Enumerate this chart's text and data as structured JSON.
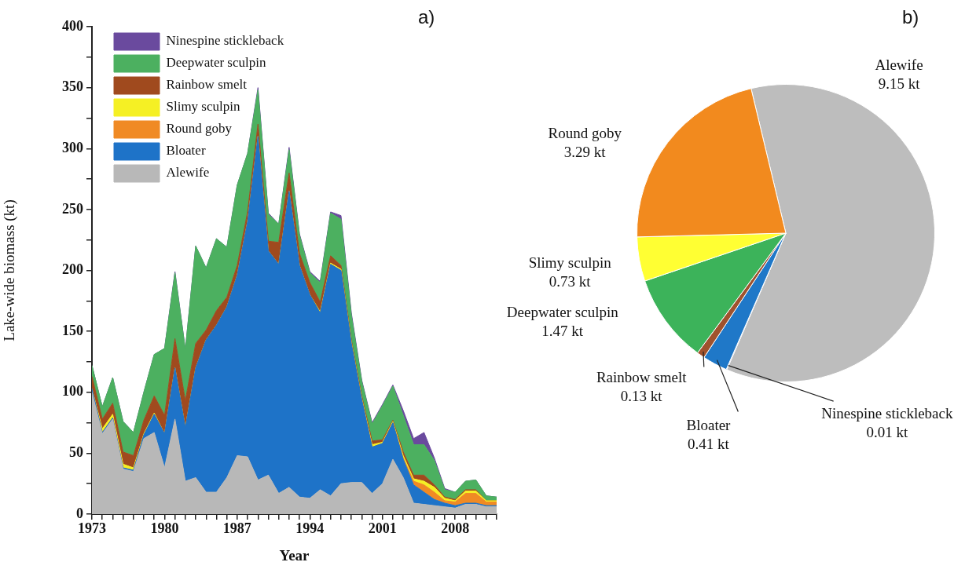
{
  "chart_data": [
    {
      "type": "area",
      "title": "a)",
      "xlabel": "Year",
      "ylabel": "Lake-wide biomass (kt)",
      "stacked": true,
      "legend": "top left",
      "x": [
        1973,
        1974,
        1975,
        1976,
        1977,
        1978,
        1979,
        1980,
        1981,
        1982,
        1983,
        1984,
        1985,
        1986,
        1987,
        1988,
        1989,
        1990,
        1991,
        1992,
        1993,
        1994,
        1995,
        1996,
        1997,
        1998,
        1999,
        2000,
        2001,
        2002,
        2003,
        2004,
        2005,
        2006,
        2007,
        2008,
        2009,
        2010,
        2011,
        2012
      ],
      "series": [
        {
          "name": "Alewife",
          "color": "#b8b8b8",
          "values": [
            100,
            66,
            78,
            37,
            35,
            62,
            67,
            38,
            78,
            27,
            30,
            18,
            18,
            30,
            48,
            47,
            28,
            32,
            17,
            22,
            14,
            13,
            20,
            15,
            25,
            26,
            26,
            17,
            25,
            45,
            30,
            9,
            8,
            7,
            6,
            5,
            8,
            8,
            6,
            6
          ]
        },
        {
          "name": "Bloater",
          "color": "#1e73c8",
          "values": [
            3,
            1,
            1,
            1,
            1,
            3,
            15,
            28,
            42,
            44,
            90,
            125,
            137,
            140,
            148,
            193,
            282,
            184,
            188,
            243,
            190,
            167,
            145,
            190,
            175,
            114,
            68,
            38,
            33,
            30,
            15,
            15,
            10,
            5,
            3,
            2,
            1,
            1,
            1,
            1
          ]
        },
        {
          "name": "Round goby",
          "color": "#f08a24",
          "values": [
            0,
            0,
            0,
            0,
            0,
            0,
            0,
            0,
            0,
            0,
            0,
            0,
            0,
            0,
            0,
            0,
            0,
            0,
            0,
            0,
            0,
            0,
            0,
            0,
            0,
            0,
            0,
            0,
            0,
            0,
            1,
            3,
            6,
            6,
            2,
            3,
            8,
            8,
            3,
            3
          ]
        },
        {
          "name": "Slimy sculpin",
          "color": "#f5f024",
          "values": [
            0,
            3,
            3,
            3,
            2,
            1,
            1,
            0,
            0,
            0,
            0,
            0,
            0,
            0,
            0,
            0,
            0,
            0,
            0,
            0,
            0,
            0,
            1,
            1,
            1,
            1,
            1,
            2,
            1,
            1,
            2,
            2,
            3,
            4,
            2,
            1,
            2,
            2,
            1,
            1
          ]
        },
        {
          "name": "Rainbow smelt",
          "color": "#a04a1e",
          "values": [
            10,
            8,
            9,
            10,
            10,
            11,
            14,
            15,
            24,
            22,
            20,
            8,
            12,
            8,
            8,
            8,
            10,
            8,
            18,
            15,
            10,
            10,
            8,
            6,
            3,
            2,
            2,
            3,
            2,
            1,
            3,
            3,
            5,
            2,
            1,
            1,
            1,
            1,
            0,
            0
          ]
        },
        {
          "name": "Deepwater sculpin",
          "color": "#4cb060",
          "values": [
            9,
            10,
            21,
            25,
            19,
            23,
            34,
            55,
            54,
            42,
            80,
            51,
            59,
            41,
            66,
            48,
            28,
            22,
            15,
            19,
            15,
            8,
            16,
            35,
            38,
            20,
            12,
            14,
            28,
            28,
            30,
            25,
            25,
            20,
            6,
            6,
            7,
            8,
            4,
            3
          ]
        },
        {
          "name": "Ninespine stickleback",
          "color": "#6a4a9e",
          "values": [
            0,
            0,
            0,
            0,
            0,
            0,
            0,
            0,
            1,
            0,
            0,
            0,
            0,
            0,
            0,
            0,
            2,
            1,
            0,
            2,
            1,
            1,
            1,
            1,
            3,
            2,
            1,
            1,
            1,
            1,
            4,
            5,
            10,
            2,
            1,
            0,
            0,
            0,
            0,
            0
          ]
        }
      ],
      "xlim": [
        1973,
        2012
      ],
      "xticks": [
        1973,
        {
          "value": 1974,
          "label": null
        },
        {
          "value": 1975,
          "label": null
        },
        {
          "value": 1976,
          "label": null
        },
        {
          "value": 1977,
          "label": null
        },
        {
          "value": 1978,
          "label": null
        },
        {
          "value": 1979,
          "label": null
        },
        1980,
        {
          "value": 1981,
          "label": null
        },
        {
          "value": 1982,
          "label": null
        },
        {
          "value": 1983,
          "label": null
        },
        {
          "value": 1984,
          "label": null
        },
        {
          "value": 1985,
          "label": null
        },
        {
          "value": 1986,
          "label": null
        },
        1987,
        {
          "value": 1988,
          "label": null
        },
        {
          "value": 1989,
          "label": null
        },
        {
          "value": 1990,
          "label": null
        },
        {
          "value": 1991,
          "label": null
        },
        {
          "value": 1992,
          "label": null
        },
        {
          "value": 1993,
          "label": null
        },
        1994,
        {
          "value": 1995,
          "label": null
        },
        {
          "value": 1996,
          "label": null
        },
        {
          "value": 1997,
          "label": null
        },
        {
          "value": 1998,
          "label": null
        },
        {
          "value": 1999,
          "label": null
        },
        {
          "value": 2000,
          "label": null
        },
        2001,
        {
          "value": 2002,
          "label": null
        },
        {
          "value": 2003,
          "label": null
        },
        {
          "value": 2004,
          "label": null
        },
        {
          "value": 2005,
          "label": null
        },
        {
          "value": 2006,
          "label": null
        },
        {
          "value": 2007,
          "label": null
        },
        2008,
        {
          "value": 2009,
          "label": null
        },
        {
          "value": 2010,
          "label": null
        },
        {
          "value": 2011,
          "label": null
        },
        {
          "value": 2012,
          "label": null
        }
      ],
      "ylim": [
        0,
        400
      ],
      "yticks": [
        0,
        {
          "value": 25,
          "label": null
        },
        50,
        {
          "value": 75,
          "label": null
        },
        100,
        {
          "value": 125,
          "label": null
        },
        150,
        {
          "value": 175,
          "label": null
        },
        200,
        {
          "value": 225,
          "label": null
        },
        250,
        {
          "value": 275,
          "label": null
        },
        300,
        {
          "value": 325,
          "label": null
        },
        350,
        {
          "value": 375,
          "label": null
        },
        400
      ]
    },
    {
      "type": "pie",
      "title": "b)",
      "categories": [
        "Alewife",
        "Ninespine stickleback",
        "Bloater",
        "Rainbow smelt",
        "Deepwater sculpin",
        "Slimy sculpin",
        "Round goby"
      ],
      "values": [
        9.15,
        0.01,
        0.41,
        0.13,
        1.47,
        0.73,
        3.29
      ],
      "value_labels": [
        "9.15 kt",
        "0.01 kt",
        "0.41 kt",
        "0.13 kt",
        "1.47 kt",
        "0.73 kt",
        "3.29 kt"
      ],
      "colors": [
        "#bdbdbd",
        "#6a4c9c",
        "#1f78c8",
        "#a0522d",
        "#3cb35a",
        "#ffff33",
        "#f28a1e"
      ]
    }
  ]
}
